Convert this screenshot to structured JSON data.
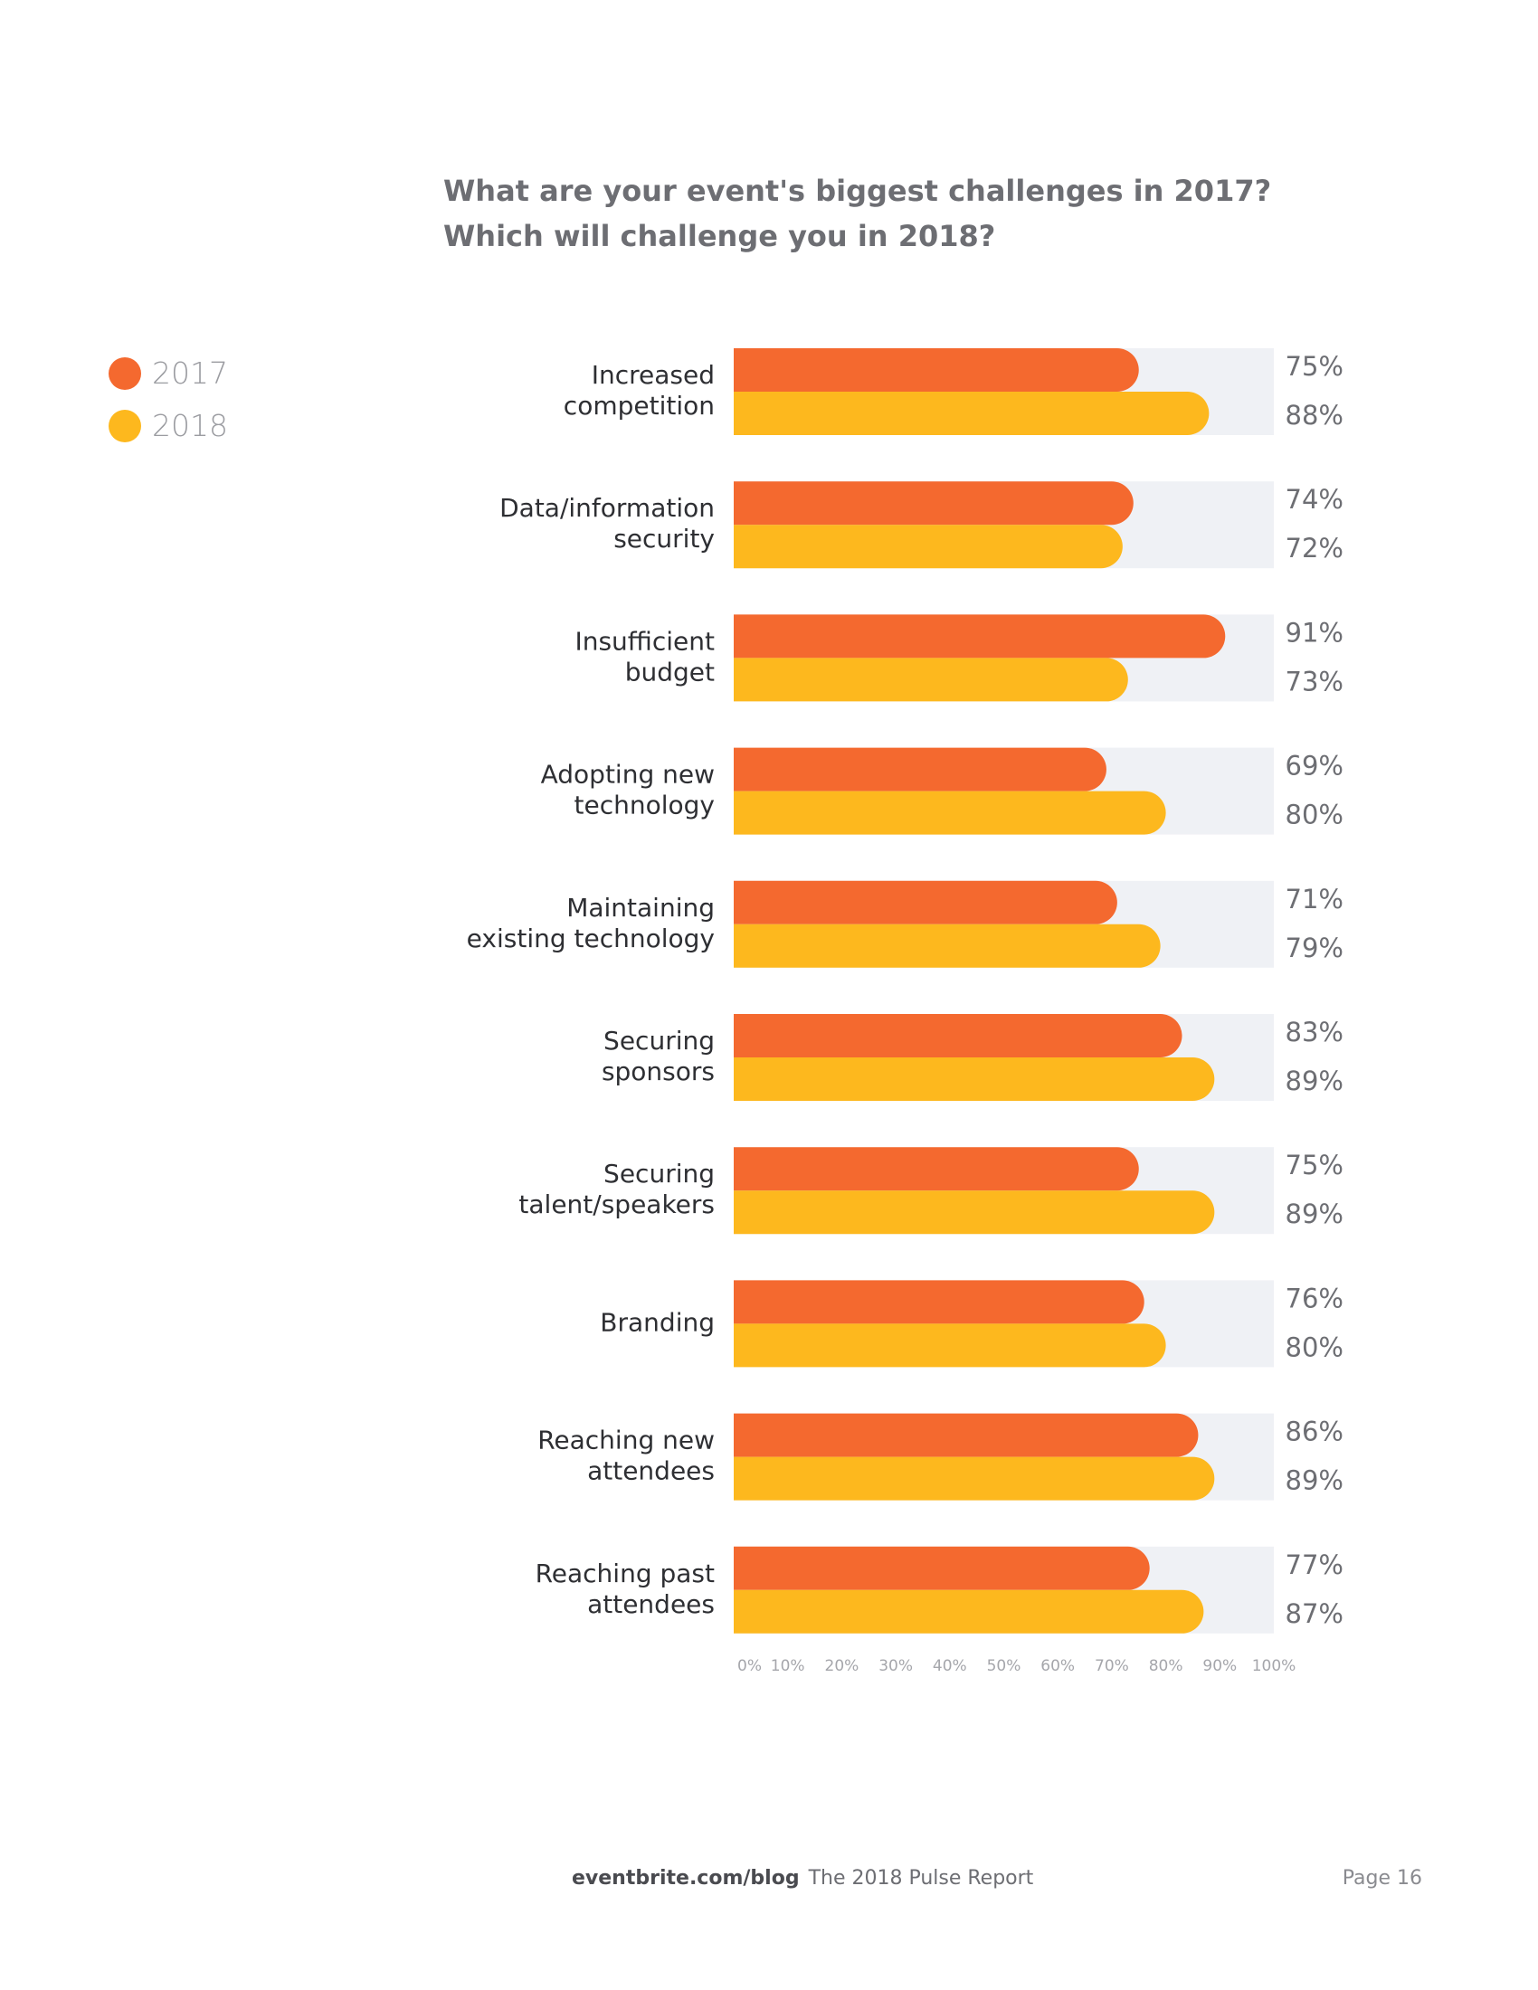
{
  "colors": {
    "series_2017": "#f4692f",
    "series_2018": "#fdb81e",
    "track": "#eff1f5",
    "category_text": "#2e2f33",
    "value_text": "#6d6e73",
    "tick_text": "#a5a6ab"
  },
  "chart_data": {
    "type": "bar",
    "orientation": "horizontal",
    "title": "What are your event's biggest challenges in 2017?",
    "subtitle": "Which will challenge you in 2018?",
    "categories": [
      [
        "Increased",
        "competition"
      ],
      [
        "Data/information",
        "security"
      ],
      [
        "Insufficient",
        "budget"
      ],
      [
        "Adopting new",
        "technology"
      ],
      [
        "Maintaining",
        "existing technology"
      ],
      [
        "Securing",
        "sponsors"
      ],
      [
        "Securing",
        "talent/speakers"
      ],
      [
        "Branding"
      ],
      [
        "Reaching new",
        "attendees"
      ],
      [
        "Reaching past",
        "attendees"
      ]
    ],
    "series": [
      {
        "name": "2017",
        "values": [
          75,
          74,
          91,
          69,
          71,
          83,
          75,
          76,
          86,
          77
        ]
      },
      {
        "name": "2018",
        "values": [
          88,
          72,
          73,
          80,
          79,
          89,
          89,
          80,
          89,
          87
        ]
      }
    ],
    "value_labels": {
      "2017": [
        "75%",
        "74%",
        "91%",
        "69%",
        "71%",
        "83%",
        "75%",
        "76%",
        "86%",
        "77%"
      ],
      "2018": [
        "88%",
        "72%",
        "73%",
        "80%",
        "79%",
        "89%",
        "89%",
        "80%",
        "89%",
        "87%"
      ]
    },
    "x_ticks": [
      "0%",
      "10%",
      "20%",
      "30%",
      "40%",
      "50%",
      "60%",
      "70%",
      "80%",
      "90%",
      "100%"
    ],
    "xlim": [
      0,
      100
    ],
    "grid": false,
    "legend_position": "top-left"
  },
  "legend": {
    "items": [
      {
        "label": "2017",
        "color": "#f4692f"
      },
      {
        "label": "2018",
        "color": "#fdb81e"
      }
    ]
  },
  "footer": {
    "site": "eventbrite.com/blog",
    "report": "The 2018 Pulse Report",
    "page": "Page 16"
  }
}
